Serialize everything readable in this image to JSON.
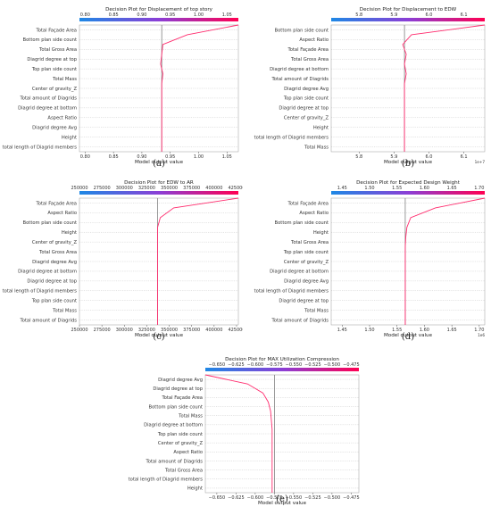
{
  "chart_data": [
    {
      "type": "line",
      "panel_label": "(a)",
      "title": "Decision Plot for Displacement of top story",
      "xlabel": "Model output value",
      "colorbar_ticks": [
        "0.80",
        "0.85",
        "0.90",
        "0.95",
        "1.00",
        "1.05"
      ],
      "tick_labels": [
        "0.80",
        "0.85",
        "0.90",
        "0.95",
        "1.00",
        "1.05"
      ],
      "ticks": [
        0.8,
        0.85,
        0.9,
        0.95,
        1.0,
        1.05
      ],
      "xlim": [
        0.79,
        1.07
      ],
      "offset_text": "",
      "base_value": 0.935,
      "features": [
        "Total Façade Area",
        "Bottom plan side count",
        "Total Gross Area",
        "Diagrid degree at top",
        "Top plan side count",
        "Total Mass",
        "Center of gravity_Z",
        "Total amount of Diagrids",
        "Diagrid degree at bottom",
        "Aspect Ratio",
        "Diagrid degree Avg",
        "Height",
        "total length of Diagrid members"
      ],
      "path": [
        1.07,
        0.98,
        0.937,
        0.935,
        0.933,
        0.937,
        0.935,
        0.935,
        0.935,
        0.935,
        0.935,
        0.935,
        0.935,
        0.935
      ]
    },
    {
      "type": "line",
      "panel_label": "(b)",
      "title": "Decision Plot for Displacement to EDW",
      "xlabel": "Model output value",
      "colorbar_ticks": [
        "5.8",
        "5.9",
        "6.0",
        "6.1"
      ],
      "tick_labels": [
        "5.8",
        "5.9",
        "6.0",
        "6.1"
      ],
      "ticks": [
        5.8,
        5.9,
        6.0,
        6.1
      ],
      "xlim": [
        5.72,
        6.16
      ],
      "offset_text": "1e+7",
      "base_value": 5.93,
      "features": [
        "Bottom plan side count",
        "Aspect Ratio",
        "Total Façade Area",
        "Total Gross Area",
        "Diagrid degree at bottom",
        "Total amount of Diagrids",
        "Diagrid degree Avg",
        "Top plan side count",
        "Diagrid degree at top",
        "Center of gravity_Z",
        "Height",
        "total length of Diagrid members",
        "Total Mass"
      ],
      "path": [
        6.16,
        5.95,
        5.925,
        5.935,
        5.93,
        5.935,
        5.93,
        5.93,
        5.93,
        5.93,
        5.93,
        5.93,
        5.93,
        5.93
      ]
    },
    {
      "type": "line",
      "panel_label": "(c)",
      "title": "Decision Plot for EDW to AR",
      "xlabel": "Model output value",
      "colorbar_ticks": [
        "250000",
        "275000",
        "300000",
        "325000",
        "350000",
        "375000",
        "400000",
        "425000"
      ],
      "tick_labels": [
        "250000",
        "275000",
        "300000",
        "325000",
        "350000",
        "375000",
        "400000",
        "425000"
      ],
      "ticks": [
        250000,
        275000,
        300000,
        325000,
        350000,
        375000,
        400000,
        425000
      ],
      "xlim": [
        250000,
        427000
      ],
      "offset_text": "",
      "base_value": 337000,
      "features": [
        "Total Façade Area",
        "Aspect Ratio",
        "Bottom plan side count",
        "Height",
        "Center of gravity_Z",
        "Total Gross Area",
        "Diagrid degree Avg",
        "Diagrid degree at bottom",
        "Diagrid degree at top",
        "total length of Diagrid members",
        "Top plan side count",
        "Total Mass",
        "Total amount of Diagrids"
      ],
      "path": [
        427000,
        355000,
        340000,
        337000,
        337000,
        337000,
        337000,
        337000,
        337000,
        337000,
        337000,
        337000,
        337000,
        337000
      ]
    },
    {
      "type": "line",
      "panel_label": "(d)",
      "title": "Decision Plot for Expected Design Weight",
      "xlabel": "Model output value",
      "colorbar_ticks": [
        "1.45",
        "1.50",
        "1.55",
        "1.60",
        "1.65",
        "1.70"
      ],
      "tick_labels": [
        "1.45",
        "1.50",
        "1.55",
        "1.60",
        "1.65",
        "1.70"
      ],
      "ticks": [
        1.45,
        1.5,
        1.55,
        1.6,
        1.65,
        1.7
      ],
      "xlim": [
        1.43,
        1.71
      ],
      "offset_text": "1e6",
      "base_value": 1.565,
      "features": [
        "Total Façade Area",
        "Aspect Ratio",
        "Bottom plan side count",
        "Height",
        "Total Gross Area",
        "Top plan side count",
        "Center of gravity_Z",
        "Diagrid degree at bottom",
        "Diagrid degree Avg",
        "total length of Diagrid members",
        "Diagrid degree at top",
        "Total Mass",
        "Total amount of Diagrids"
      ],
      "path": [
        1.71,
        1.62,
        1.575,
        1.568,
        1.566,
        1.565,
        1.565,
        1.565,
        1.565,
        1.565,
        1.565,
        1.565,
        1.565,
        1.565
      ]
    },
    {
      "type": "line",
      "panel_label": "(e)",
      "title": "Decision Plot for MAX Utilization Compression",
      "xlabel": "Model output value",
      "colorbar_ticks": [
        "−0.650",
        "−0.625",
        "−0.600",
        "−0.575",
        "−0.550",
        "−0.525",
        "−0.500",
        "−0.475"
      ],
      "tick_labels": [
        "−0.650",
        "−0.625",
        "−0.600",
        "−0.575",
        "−0.550",
        "−0.525",
        "−0.500",
        "−0.475"
      ],
      "ticks": [
        -0.65,
        -0.625,
        -0.6,
        -0.575,
        -0.55,
        -0.525,
        -0.5,
        -0.475
      ],
      "xlim": [
        -0.665,
        -0.465
      ],
      "offset_text": "",
      "base_value": -0.575,
      "features": [
        "Diagrid degree Avg",
        "Diagrid degree at top",
        "Total Façade Area",
        "Bottom plan side count",
        "Total Mass",
        "Diagrid degree at bottom",
        "Top plan side count",
        "Center of gravity_Z",
        "Aspect Ratio",
        "Total amount of Diagrids",
        "Total Gross Area",
        "total length of Diagrid members",
        "Height"
      ],
      "path": [
        -0.665,
        -0.61,
        -0.59,
        -0.583,
        -0.58,
        -0.579,
        -0.578,
        -0.578,
        -0.578,
        -0.578,
        -0.578,
        -0.578,
        -0.578,
        -0.578
      ]
    }
  ]
}
